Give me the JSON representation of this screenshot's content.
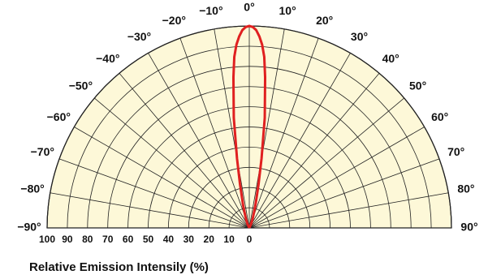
{
  "chart_data": {
    "type": "polar",
    "xlabel": "Relative Emission Intensily (%)",
    "angle_ticks": [
      {
        "angle": -90,
        "label": "−90°"
      },
      {
        "angle": -80,
        "label": "−80°"
      },
      {
        "angle": -70,
        "label": "−70°"
      },
      {
        "angle": -60,
        "label": "−60°"
      },
      {
        "angle": -50,
        "label": "−50°"
      },
      {
        "angle": -40,
        "label": "−40°"
      },
      {
        "angle": -30,
        "label": "−30°"
      },
      {
        "angle": -20,
        "label": "−20°"
      },
      {
        "angle": -10,
        "label": "−10°"
      },
      {
        "angle": 0,
        "label": "0°"
      },
      {
        "angle": 10,
        "label": "10°"
      },
      {
        "angle": 20,
        "label": "20°"
      },
      {
        "angle": 30,
        "label": "30°"
      },
      {
        "angle": 40,
        "label": "40°"
      },
      {
        "angle": 50,
        "label": "50°"
      },
      {
        "angle": 60,
        "label": "60°"
      },
      {
        "angle": 70,
        "label": "70°"
      },
      {
        "angle": 80,
        "label": "80°"
      },
      {
        "angle": 90,
        "label": "90°"
      }
    ],
    "radial_ticks": [
      "100",
      "90",
      "80",
      "70",
      "60",
      "50",
      "40",
      "30",
      "20",
      "10",
      "0"
    ],
    "radial_range": [
      0,
      100
    ],
    "series": [
      {
        "color": "#e02020",
        "points": [
          {
            "angle": -30,
            "value": 0
          },
          {
            "angle": -25,
            "value": 2
          },
          {
            "angle": -20,
            "value": 5
          },
          {
            "angle": -17,
            "value": 8
          },
          {
            "angle": -15,
            "value": 12
          },
          {
            "angle": -12,
            "value": 22
          },
          {
            "angle": -10,
            "value": 35
          },
          {
            "angle": -8,
            "value": 55
          },
          {
            "angle": -6,
            "value": 75
          },
          {
            "angle": -5,
            "value": 85
          },
          {
            "angle": -4,
            "value": 91
          },
          {
            "angle": -3,
            "value": 95
          },
          {
            "angle": -2,
            "value": 98
          },
          {
            "angle": -1,
            "value": 99.5
          },
          {
            "angle": 0,
            "value": 100
          },
          {
            "angle": 1,
            "value": 99.5
          },
          {
            "angle": 2,
            "value": 98
          },
          {
            "angle": 3,
            "value": 95
          },
          {
            "angle": 4,
            "value": 91
          },
          {
            "angle": 5,
            "value": 85
          },
          {
            "angle": 6,
            "value": 75
          },
          {
            "angle": 8,
            "value": 55
          },
          {
            "angle": 10,
            "value": 35
          },
          {
            "angle": 12,
            "value": 22
          },
          {
            "angle": 15,
            "value": 12
          },
          {
            "angle": 17,
            "value": 8
          },
          {
            "angle": 20,
            "value": 5
          },
          {
            "angle": 25,
            "value": 2
          },
          {
            "angle": 30,
            "value": 0
          }
        ]
      }
    ],
    "colors": {
      "background": "#fdf8d8",
      "grid": "#222222",
      "curve": "#e02020"
    }
  }
}
